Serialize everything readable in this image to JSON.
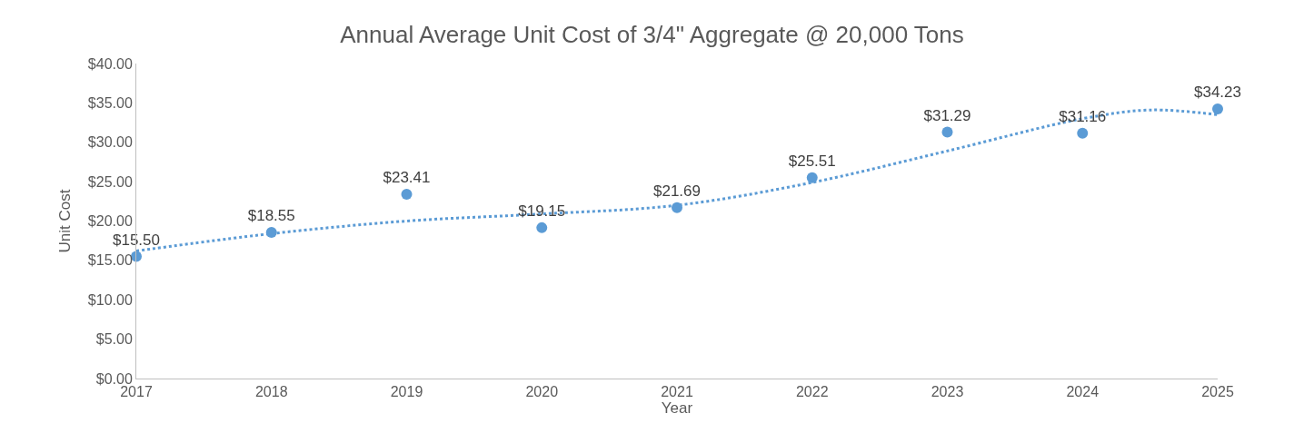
{
  "chart_data": {
    "type": "scatter",
    "title": "Annual Average Unit Cost of 3/4\" Aggregate @ 20,000 Tons",
    "xlabel": "Year",
    "ylabel": "Unit Cost",
    "x": [
      2017,
      2018,
      2019,
      2020,
      2021,
      2022,
      2023,
      2024,
      2025
    ],
    "series": [
      {
        "color": "#5b9bd5",
        "values": [
          15.5,
          18.55,
          23.41,
          19.15,
          21.69,
          25.51,
          31.29,
          31.16,
          34.23
        ],
        "value_labels": [
          "$15.50",
          "$18.55",
          "$23.41",
          "$19.15",
          "$21.69",
          "$25.51",
          "$31.29",
          "$31.16",
          "$34.23"
        ],
        "marker": "circle"
      },
      {
        "type": "line",
        "color": "#5b9bd5",
        "line_style": "dotted",
        "x": [
          2017,
          2018,
          2019,
          2020,
          2021,
          2022,
          2023,
          2024,
          2024.5,
          2025
        ],
        "values": [
          16.2,
          18.4,
          20.0,
          20.9,
          22.0,
          24.9,
          28.9,
          33.0,
          34.1,
          33.5
        ]
      }
    ],
    "xlim": [
      2017,
      2025
    ],
    "xticks": [
      2017,
      2018,
      2019,
      2020,
      2021,
      2022,
      2023,
      2024,
      2025
    ],
    "ylim": [
      0,
      40
    ],
    "yticks": [
      {
        "value": 0,
        "label": "$0.00"
      },
      {
        "value": 5,
        "label": "$5.00"
      },
      {
        "value": 10,
        "label": "$10.00"
      },
      {
        "value": 15,
        "label": "$15.00"
      },
      {
        "value": 20,
        "label": "$20.00"
      },
      {
        "value": 25,
        "label": "$25.00"
      },
      {
        "value": 30,
        "label": "$30.00"
      },
      {
        "value": 35,
        "label": "$35.00"
      },
      {
        "value": 40,
        "label": "$40.00"
      }
    ],
    "grid": false
  }
}
